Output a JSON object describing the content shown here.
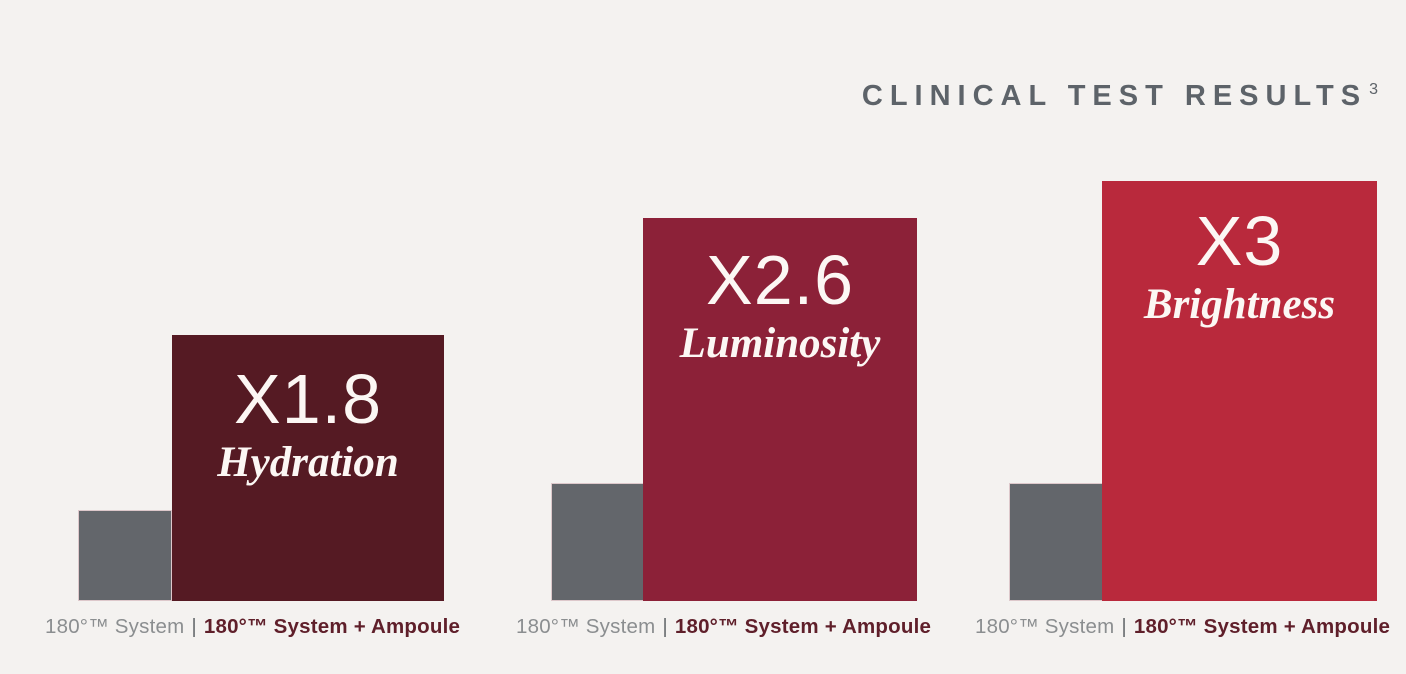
{
  "title": {
    "text": "CLINICAL TEST RESULTS",
    "superscript": "3"
  },
  "colors": {
    "background": "#f4f2f0",
    "title": "#5d6369",
    "system_bar_gray": "#63666b",
    "caption_gray": "#8b8e90",
    "caption_maroon": "#5f1f2a",
    "bar_text": "#fcf7f4"
  },
  "groups": [
    {
      "metric": "Hydration",
      "multiplier": "X1.8",
      "bar_color": "#551a23",
      "caption": {
        "plain": "180°™ System",
        "divider": "|",
        "bold": "180°™ System + Ampoule"
      }
    },
    {
      "metric": "Luminosity",
      "multiplier": "X2.6",
      "bar_color": "#8c2138",
      "caption": {
        "plain": "180°™ System",
        "divider": "|",
        "bold": "180°™ System + Ampoule"
      }
    },
    {
      "metric": "Brightness",
      "multiplier": "X3",
      "bar_color": "#b9293c",
      "caption": {
        "plain": "180°™ System",
        "divider": "|",
        "bold": "180°™ System + Ampoule"
      }
    }
  ],
  "chart_data": {
    "type": "bar",
    "title": "CLINICAL TEST RESULTS",
    "title_footnote_marker": "3",
    "categories": [
      "Hydration",
      "Luminosity",
      "Brightness"
    ],
    "series": [
      {
        "name": "180°™ System",
        "color": "#63666b",
        "values": [
          1,
          1,
          1
        ]
      },
      {
        "name": "180°™ System + Ampoule",
        "colors": [
          "#551a23",
          "#8c2138",
          "#b9293c"
        ],
        "values": [
          1.8,
          2.6,
          3
        ]
      }
    ],
    "value_labels": [
      "X1.8",
      "X2.6",
      "X3"
    ],
    "xlabel": "",
    "ylabel": "",
    "axes_visible": false,
    "grid": false,
    "legend_position": "caption-below-each-group"
  }
}
